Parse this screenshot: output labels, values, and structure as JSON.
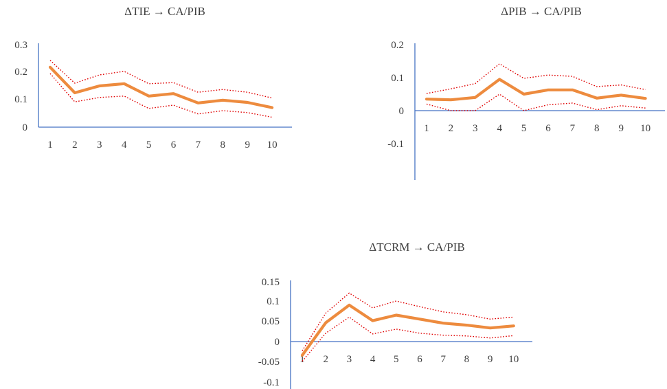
{
  "chart_data": [
    {
      "type": "line",
      "title": "ΔTIE → CA/PIB",
      "categories": [
        "1",
        "2",
        "3",
        "4",
        "5",
        "6",
        "7",
        "8",
        "9",
        "10"
      ],
      "y_ticks": [
        "0.3",
        "0.2",
        "0.1",
        "0"
      ],
      "ylim": [
        0,
        0.3
      ],
      "series": [
        {
          "role": "response",
          "color": "#ed8b3e",
          "values": [
            0.218,
            0.125,
            0.15,
            0.158,
            0.113,
            0.122,
            0.088,
            0.098,
            0.09,
            0.071
          ]
        },
        {
          "role": "upper",
          "color": "#e00000",
          "values": [
            0.243,
            0.16,
            0.19,
            0.203,
            0.158,
            0.162,
            0.127,
            0.137,
            0.127,
            0.106
          ]
        },
        {
          "role": "lower",
          "color": "#e00000",
          "values": [
            0.195,
            0.092,
            0.108,
            0.113,
            0.068,
            0.08,
            0.048,
            0.06,
            0.053,
            0.036
          ]
        }
      ]
    },
    {
      "type": "line",
      "title": "ΔPIB → CA/PIB",
      "categories": [
        "1",
        "2",
        "3",
        "4",
        "5",
        "6",
        "7",
        "8",
        "9",
        "10"
      ],
      "y_ticks": [
        "0.2",
        "0.1",
        "0",
        "-0.1"
      ],
      "ylim": [
        -0.1,
        0.2
      ],
      "series": [
        {
          "role": "response",
          "color": "#ed8b3e",
          "values": [
            0.035,
            0.033,
            0.04,
            0.095,
            0.05,
            0.063,
            0.063,
            0.038,
            0.047,
            0.037
          ]
        },
        {
          "role": "upper",
          "color": "#e00000",
          "values": [
            0.052,
            0.066,
            0.082,
            0.142,
            0.098,
            0.108,
            0.104,
            0.073,
            0.078,
            0.064
          ]
        },
        {
          "role": "lower",
          "color": "#e00000",
          "values": [
            0.02,
            0.0,
            0.0,
            0.05,
            0.0,
            0.018,
            0.023,
            0.003,
            0.015,
            0.008
          ]
        }
      ]
    },
    {
      "type": "line",
      "title": "ΔTCRM → CA/PIB",
      "categories": [
        "1",
        "2",
        "3",
        "4",
        "5",
        "6",
        "7",
        "8",
        "9",
        "10"
      ],
      "y_ticks": [
        "0.15",
        "0.1",
        "0.05",
        "0",
        "-0.05",
        "-0.1"
      ],
      "ylim": [
        -0.1,
        0.15
      ],
      "series": [
        {
          "role": "response",
          "color": "#ed8b3e",
          "values": [
            -0.033,
            0.048,
            0.092,
            0.053,
            0.067,
            0.057,
            0.047,
            0.042,
            0.035,
            0.04
          ]
        },
        {
          "role": "upper",
          "color": "#e00000",
          "values": [
            -0.022,
            0.072,
            0.122,
            0.085,
            0.102,
            0.088,
            0.075,
            0.068,
            0.057,
            0.062
          ]
        },
        {
          "role": "lower",
          "color": "#e00000",
          "values": [
            -0.048,
            0.022,
            0.062,
            0.02,
            0.032,
            0.022,
            0.017,
            0.015,
            0.01,
            0.016
          ]
        }
      ]
    }
  ]
}
